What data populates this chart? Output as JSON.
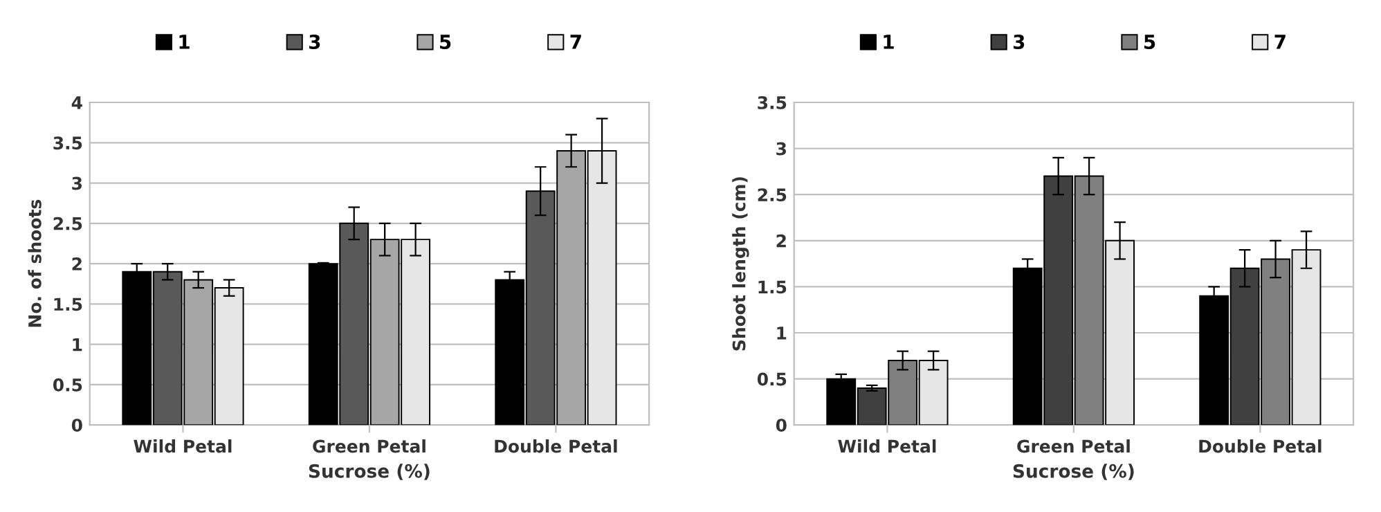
{
  "chart_data": [
    {
      "type": "bar",
      "xlabel": "Sucrose (%)",
      "ylabel": "No. of shoots",
      "categories": [
        "Wild Petal",
        "Green Petal",
        "Double Petal"
      ],
      "series": [
        {
          "name": "1",
          "color": "#000000",
          "values": [
            1.9,
            2.0,
            1.8
          ],
          "errors": [
            0.1,
            0.01,
            0.1
          ]
        },
        {
          "name": "3",
          "color": "#595959",
          "values": [
            1.9,
            2.5,
            2.9
          ],
          "errors": [
            0.1,
            0.2,
            0.3
          ]
        },
        {
          "name": "5",
          "color": "#a6a6a6",
          "values": [
            1.8,
            2.3,
            3.4
          ],
          "errors": [
            0.1,
            0.2,
            0.2
          ]
        },
        {
          "name": "7",
          "color": "#e6e6e6",
          "values": [
            1.7,
            2.3,
            3.4
          ],
          "errors": [
            0.1,
            0.2,
            0.4
          ]
        }
      ],
      "ylim": [
        0,
        4
      ],
      "yticks": [
        0,
        0.5,
        1,
        1.5,
        2,
        2.5,
        3,
        3.5,
        4
      ],
      "grid": "y",
      "legend": "top"
    },
    {
      "type": "bar",
      "xlabel": "Sucrose (%)",
      "ylabel": "Shoot length (cm)",
      "categories": [
        "Wild Petal",
        "Green Petal",
        "Double Petal"
      ],
      "series": [
        {
          "name": "1",
          "color": "#000000",
          "values": [
            0.5,
            1.7,
            1.4
          ],
          "errors": [
            0.05,
            0.1,
            0.1
          ]
        },
        {
          "name": "3",
          "color": "#404040",
          "values": [
            0.4,
            2.7,
            1.7
          ],
          "errors": [
            0.03,
            0.2,
            0.2
          ]
        },
        {
          "name": "5",
          "color": "#808080",
          "values": [
            0.7,
            2.7,
            1.8
          ],
          "errors": [
            0.1,
            0.2,
            0.2
          ]
        },
        {
          "name": "7",
          "color": "#e6e6e6",
          "values": [
            0.7,
            2.0,
            1.9
          ],
          "errors": [
            0.1,
            0.2,
            0.2
          ]
        }
      ],
      "ylim": [
        0,
        3.5
      ],
      "yticks": [
        0,
        0.5,
        1,
        1.5,
        2,
        2.5,
        3,
        3.5
      ],
      "grid": "y",
      "legend": "top"
    }
  ]
}
